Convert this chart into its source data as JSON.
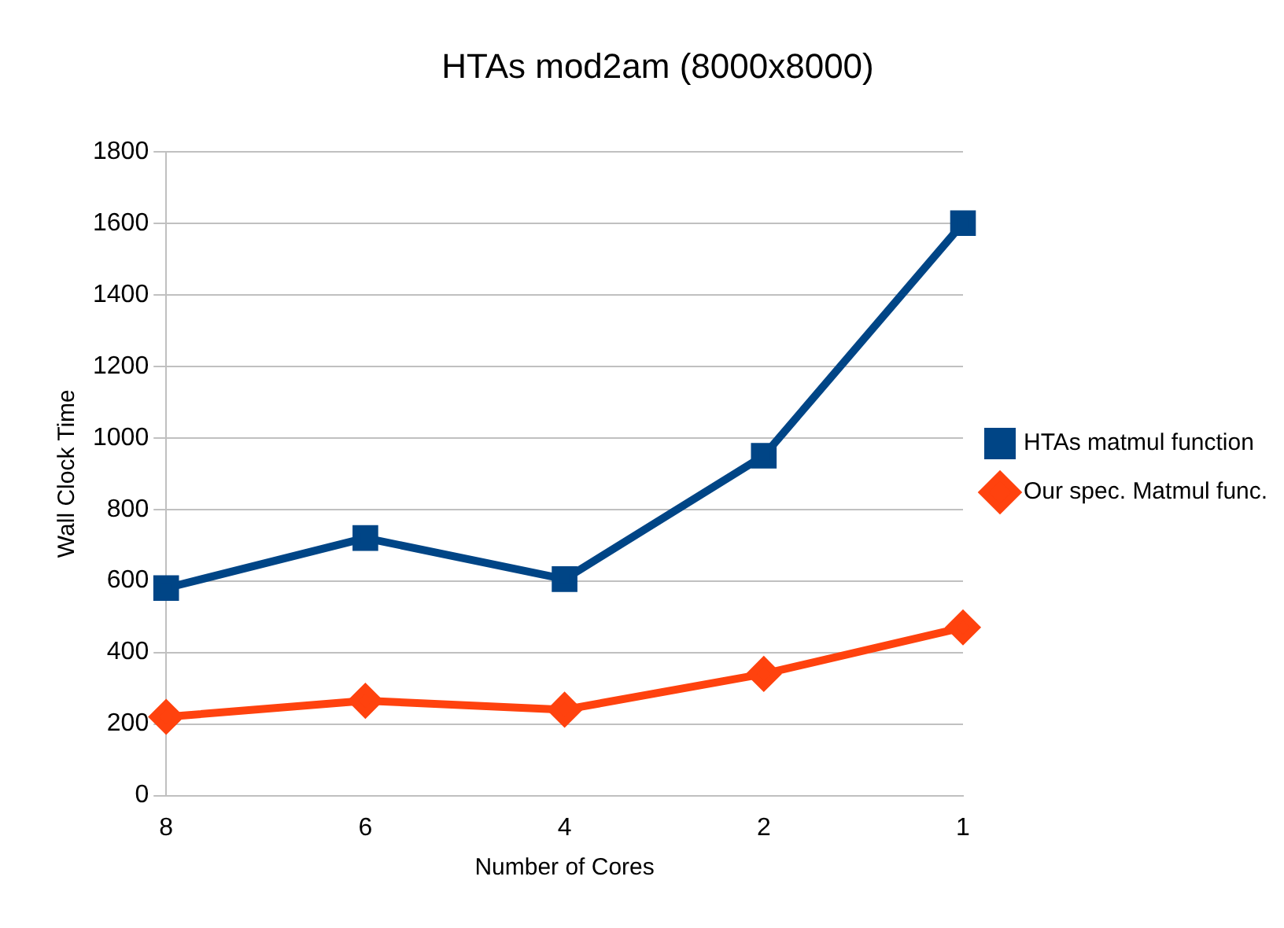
{
  "chart_data": {
    "type": "line",
    "title": "HTAs mod2am (8000x8000)",
    "xlabel": "Number of Cores",
    "ylabel": "Wall Clock Time",
    "categories": [
      "8",
      "6",
      "4",
      "2",
      "1"
    ],
    "series": [
      {
        "name": "HTAs matmul function",
        "color": "#004586",
        "values": [
          580,
          720,
          605,
          950,
          1600
        ],
        "marker": "square"
      },
      {
        "name": "Our spec. Matmul func.",
        "color": "#ff420e",
        "values": [
          220,
          265,
          240,
          340,
          470
        ],
        "marker": "diamond"
      }
    ],
    "ylim": [
      0,
      1800
    ],
    "yticks": [
      0,
      200,
      400,
      600,
      800,
      1000,
      1200,
      1400,
      1600,
      1800
    ],
    "grid": "y",
    "legend": "right",
    "line_style": "solid"
  }
}
